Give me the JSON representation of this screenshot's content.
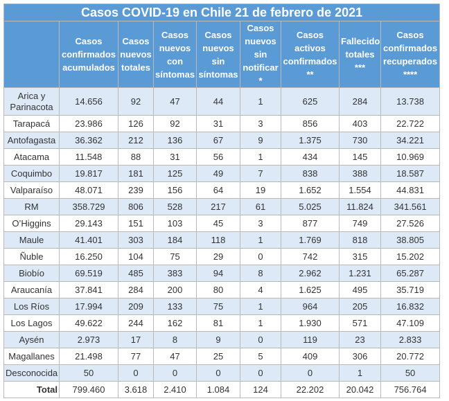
{
  "title": "Casos COVID-19 en Chile 21 de febrero de 2021",
  "table": {
    "header": [
      "",
      "Casos\nconfirmados\nacumulados",
      "Casos\nnuevos\ntotales",
      "Casos\nnuevos\ncon\nsíntomas",
      "Casos\nnuevos\nsin\nsíntomas",
      "Casos\nnuevos\nsin\nnotificar\n*",
      "Casos\nactivos\nconfirmados\n**",
      "Fallecidos\ntotales\n***",
      "Casos\nconfirmados\nrecuperados\n****"
    ],
    "rows": [
      [
        "Arica y\nParinacota",
        "14.656",
        "92",
        "47",
        "44",
        "1",
        "625",
        "284",
        "13.738"
      ],
      [
        "Tarapacá",
        "23.986",
        "126",
        "92",
        "31",
        "3",
        "856",
        "403",
        "22.722"
      ],
      [
        "Antofagasta",
        "36.362",
        "212",
        "136",
        "67",
        "9",
        "1.375",
        "730",
        "34.221"
      ],
      [
        "Atacama",
        "11.548",
        "88",
        "31",
        "56",
        "1",
        "434",
        "145",
        "10.969"
      ],
      [
        "Coquimbo",
        "19.817",
        "181",
        "125",
        "49",
        "7",
        "838",
        "388",
        "18.587"
      ],
      [
        "Valparaíso",
        "48.071",
        "239",
        "156",
        "64",
        "19",
        "1.652",
        "1.554",
        "44.831"
      ],
      [
        "RM",
        "358.729",
        "806",
        "528",
        "217",
        "61",
        "5.025",
        "11.824",
        "341.561"
      ],
      [
        "O’Higgins",
        "29.143",
        "151",
        "103",
        "45",
        "3",
        "877",
        "749",
        "27.526"
      ],
      [
        "Maule",
        "41.401",
        "303",
        "184",
        "118",
        "1",
        "1.769",
        "818",
        "38.805"
      ],
      [
        "Ñuble",
        "16.250",
        "104",
        "75",
        "29",
        "0",
        "742",
        "315",
        "15.202"
      ],
      [
        "Biobío",
        "69.519",
        "485",
        "383",
        "94",
        "8",
        "2.962",
        "1.231",
        "65.287"
      ],
      [
        "Araucanía",
        "37.841",
        "284",
        "200",
        "80",
        "4",
        "1.625",
        "495",
        "35.719"
      ],
      [
        "Los Ríos",
        "17.994",
        "209",
        "133",
        "75",
        "1",
        "964",
        "205",
        "16.832"
      ],
      [
        "Los Lagos",
        "49.622",
        "244",
        "162",
        "81",
        "1",
        "1.930",
        "571",
        "47.109"
      ],
      [
        "Aysén",
        "2.973",
        "17",
        "8",
        "9",
        "0",
        "119",
        "23",
        "2.833"
      ],
      [
        "Magallanes",
        "21.498",
        "77",
        "47",
        "25",
        "5",
        "409",
        "306",
        "20.772"
      ],
      [
        "Desconocida",
        "50",
        "0",
        "0",
        "0",
        "0",
        "0",
        "1",
        "50"
      ]
    ],
    "total": [
      "Total",
      "799.460",
      "3.618",
      "2.410",
      "1.084",
      "124",
      "22.202",
      "20.042",
      "756.764"
    ]
  }
}
